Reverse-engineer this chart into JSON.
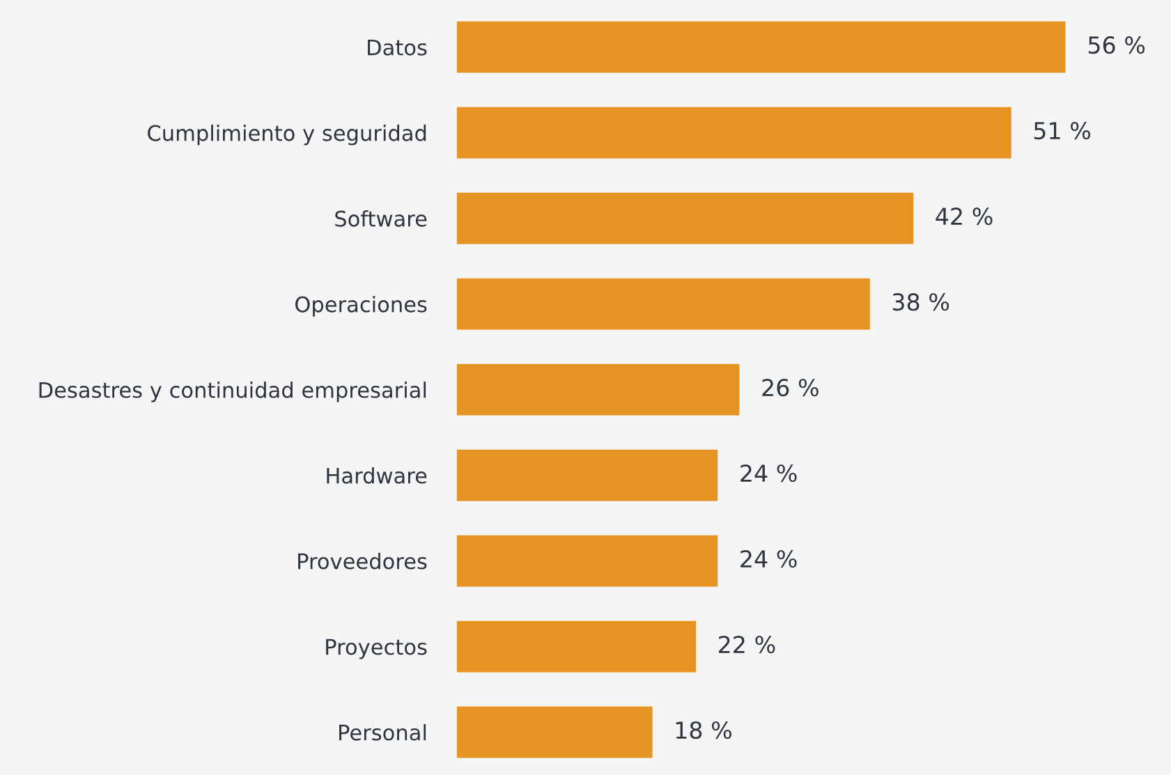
{
  "chart_data": {
    "type": "bar",
    "orientation": "horizontal",
    "categories": [
      "Datos",
      "Cumplimiento y seguridad",
      "Software",
      "Operaciones",
      "Desastres y continuidad empresarial",
      "Hardware",
      "Proveedores",
      "Proyectos",
      "Personal"
    ],
    "values": [
      56,
      51,
      42,
      38,
      26,
      24,
      24,
      22,
      18
    ],
    "value_labels": [
      "56 %",
      "51 %",
      "42 %",
      "38 %",
      "26 %",
      "24 %",
      "24 %",
      "22 %",
      "18 %"
    ],
    "color": "#e59424",
    "grid": false,
    "legend": false
  }
}
